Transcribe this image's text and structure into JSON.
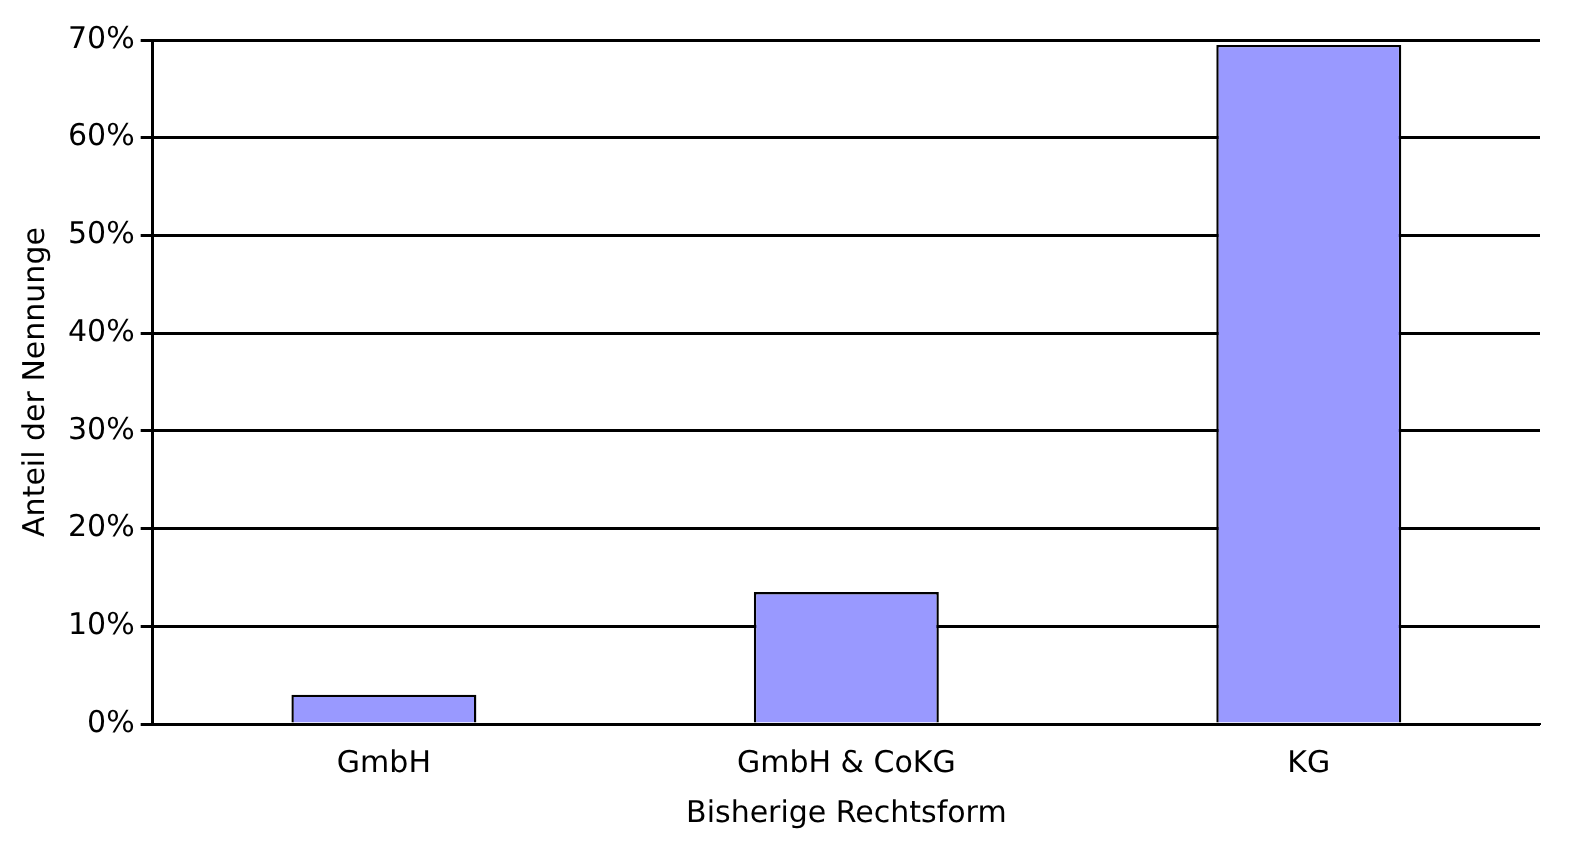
{
  "chart_data": {
    "type": "bar",
    "xlabel": "Bisherige Rechtsform",
    "ylabel": "Anteil der Nennunge",
    "categories": [
      "GmbH",
      "GmbH & CoKG",
      "KG"
    ],
    "values": [
      3,
      13.5,
      69.5
    ],
    "color": "#9999ff",
    "ylim": [
      0,
      70
    ],
    "yticks": [
      {
        "value": 0,
        "label": "0%"
      },
      {
        "value": 10,
        "label": "10%"
      },
      {
        "value": 20,
        "label": "20%"
      },
      {
        "value": 30,
        "label": "30%"
      },
      {
        "value": 40,
        "label": "40%"
      },
      {
        "value": 50,
        "label": "50%"
      },
      {
        "value": 60,
        "label": "60%"
      },
      {
        "value": 70,
        "label": "70%"
      }
    ],
    "grid": "y",
    "legend": false
  }
}
